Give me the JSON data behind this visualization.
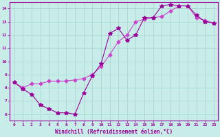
{
  "title": "",
  "xlabel": "Windchill (Refroidissement éolien,°C)",
  "ylabel": "",
  "xlim": [
    -0.5,
    23.5
  ],
  "ylim": [
    5.5,
    14.5
  ],
  "xticks": [
    0,
    1,
    2,
    3,
    4,
    5,
    6,
    7,
    8,
    9,
    10,
    11,
    12,
    13,
    14,
    15,
    16,
    17,
    18,
    19,
    20,
    21,
    22,
    23
  ],
  "yticks": [
    6,
    7,
    8,
    9,
    10,
    11,
    12,
    13,
    14
  ],
  "bg_color": "#c8ece8",
  "grid_color": "#a8d8d0",
  "line_color": "#990099",
  "line_color2": "#cc44cc",
  "x_data": [
    0,
    1,
    2,
    3,
    4,
    5,
    6,
    7,
    8,
    9,
    10,
    11,
    12,
    13,
    14,
    15,
    16,
    17,
    18,
    19,
    20,
    21,
    22,
    23
  ],
  "y_data": [
    8.4,
    7.9,
    7.5,
    6.7,
    6.4,
    6.1,
    6.1,
    6.0,
    7.6,
    8.9,
    9.8,
    12.1,
    12.5,
    11.6,
    12.0,
    13.3,
    13.3,
    14.2,
    14.3,
    14.2,
    14.2,
    13.5,
    13.0,
    12.9
  ],
  "x_data2": [
    0,
    1,
    2,
    3,
    4,
    5,
    6,
    7,
    8,
    9,
    10,
    11,
    12,
    13,
    14,
    15,
    16,
    17,
    18,
    19,
    20,
    21,
    22,
    23
  ],
  "y_data2": [
    8.4,
    8.0,
    8.3,
    8.3,
    8.5,
    8.5,
    8.5,
    8.6,
    8.7,
    9.0,
    9.6,
    10.5,
    11.5,
    12.0,
    13.0,
    13.2,
    13.3,
    13.4,
    13.8,
    14.2,
    14.2,
    13.3,
    13.1,
    12.9
  ],
  "title_fontsize": 6,
  "xlabel_fontsize": 5.5,
  "tick_fontsize": 4.5
}
